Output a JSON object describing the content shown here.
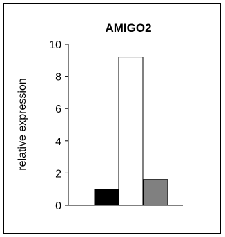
{
  "chart_data": {
    "type": "bar",
    "title": "AMIGO2",
    "xlabel": "",
    "ylabel": "relative expression",
    "categories": [
      "",
      "",
      ""
    ],
    "values": [
      1.0,
      9.2,
      1.6
    ],
    "bar_colors": [
      "#000000",
      "#ffffff",
      "#808080"
    ],
    "ylim": [
      0,
      10
    ],
    "yticks": [
      0,
      2,
      4,
      6,
      8,
      10
    ],
    "ytick_labels": [
      "0",
      "2",
      "4",
      "6",
      "8",
      "10"
    ],
    "grid": false,
    "legend": "none"
  }
}
